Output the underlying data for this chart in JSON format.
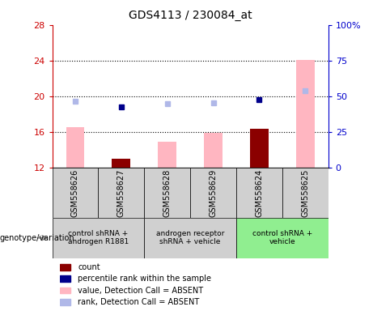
{
  "title": "GDS4113 / 230084_at",
  "samples": [
    "GSM558626",
    "GSM558627",
    "GSM558628",
    "GSM558629",
    "GSM558624",
    "GSM558625"
  ],
  "value_absent": [
    16.6,
    null,
    14.9,
    15.9,
    null,
    24.1
  ],
  "rank_absent": [
    19.5,
    null,
    19.2,
    19.3,
    null,
    20.6
  ],
  "count_present": [
    null,
    13.0,
    null,
    null,
    16.4,
    null
  ],
  "rank_present": [
    null,
    18.8,
    null,
    null,
    19.6,
    null
  ],
  "ylim": [
    12,
    28
  ],
  "yticks_left": [
    12,
    16,
    20,
    24,
    28
  ],
  "yticks_right": [
    0,
    25,
    50,
    75,
    100
  ],
  "ytick_right_labels": [
    "0",
    "25",
    "50",
    "75",
    "100%"
  ],
  "hlines": [
    16,
    20,
    24
  ],
  "left_color": "#cc0000",
  "right_color": "#0000cc",
  "bar_absent_color": "#ffb6c1",
  "bar_present_color": "#8b0000",
  "dot_absent_color": "#b0b8e8",
  "dot_present_color": "#00008b",
  "group_positions": [
    {
      "start": 0,
      "end": 1,
      "color": "#d0d0d0",
      "label": "control shRNA +\nandrogen R1881"
    },
    {
      "start": 2,
      "end": 3,
      "color": "#d0d0d0",
      "label": "androgen receptor\nshRNA + vehicle"
    },
    {
      "start": 4,
      "end": 5,
      "color": "#90ee90",
      "label": "control shRNA +\nvehicle"
    }
  ],
  "legend_items": [
    {
      "label": "count",
      "color": "#8b0000"
    },
    {
      "label": "percentile rank within the sample",
      "color": "#00008b"
    },
    {
      "label": "value, Detection Call = ABSENT",
      "color": "#ffb6c1"
    },
    {
      "label": "rank, Detection Call = ABSENT",
      "color": "#b0b8e8"
    }
  ],
  "genotype_label": "genotype/variation",
  "bar_width": 0.4
}
